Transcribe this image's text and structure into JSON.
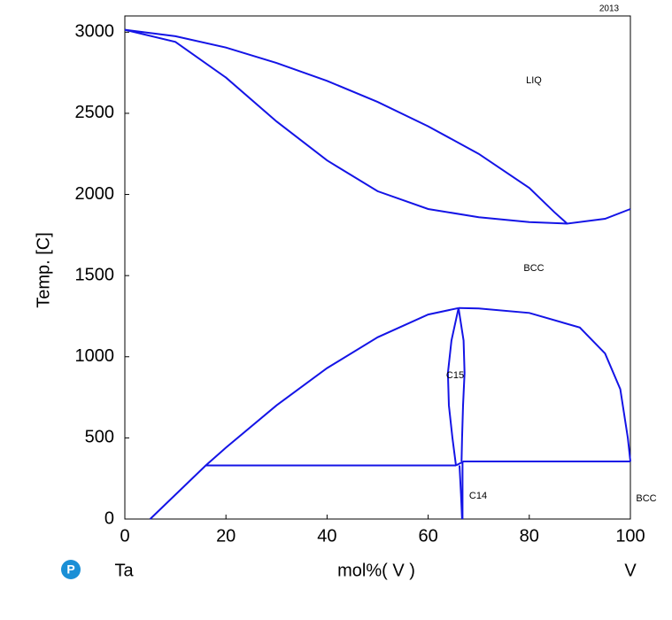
{
  "chart_data": {
    "type": "line",
    "stamp": "2013",
    "y_label": "Temp.  [C]",
    "x_label": "mol%(  V  )",
    "components": [
      "Ta",
      "V"
    ],
    "color": "#1414e6",
    "xlim": [
      0,
      100
    ],
    "xticks": [
      0,
      20,
      40,
      60,
      80,
      100
    ],
    "ylim": [
      0,
      3100
    ],
    "yticks": [
      0,
      500,
      1000,
      1500,
      2000,
      2500,
      3000
    ],
    "annotations": [
      "LIQ",
      "BCC",
      "C15",
      "C14",
      "BCC"
    ],
    "series": [
      {
        "x": [
          0,
          10,
          20,
          30,
          40,
          50,
          60,
          70,
          80,
          85,
          87.5,
          95,
          100
        ],
        "values": [
          3015,
          2975,
          2905,
          2810,
          2700,
          2570,
          2420,
          2250,
          2040,
          1890,
          1820,
          1850,
          1910
        ]
      },
      {
        "x": [
          0,
          10,
          20,
          30,
          40,
          50,
          60,
          70,
          80,
          87.5
        ],
        "values": [
          3015,
          2940,
          2720,
          2450,
          2210,
          2020,
          1910,
          1860,
          1830,
          1820
        ]
      },
      {
        "x": [
          5,
          16,
          20,
          30,
          40,
          50,
          60,
          66
        ],
        "values": [
          0,
          330,
          440,
          700,
          930,
          1120,
          1260,
          1300
        ]
      },
      {
        "x": [
          66,
          70,
          80,
          90,
          95,
          98,
          99.5,
          100
        ],
        "values": [
          1300,
          1298,
          1270,
          1180,
          1020,
          800,
          500,
          355
        ]
      },
      {
        "x": [
          16,
          65.5
        ],
        "values": [
          330,
          330
        ]
      },
      {
        "x": [
          65.5,
          67,
          100
        ],
        "values": [
          330,
          355,
          355
        ]
      },
      {
        "x": [
          66,
          64.6,
          63.9,
          64.1,
          64.8,
          65.5
        ],
        "values": [
          1300,
          1100,
          900,
          700,
          500,
          330
        ]
      },
      {
        "x": [
          66,
          67,
          67.2,
          66.9,
          66.7,
          66.6
        ],
        "values": [
          1300,
          1100,
          900,
          700,
          500,
          355
        ]
      },
      {
        "x": [
          66.2,
          66.5,
          66.7
        ],
        "values": [
          330,
          150,
          0
        ]
      },
      {
        "x": [
          66.8,
          66.8
        ],
        "values": [
          355,
          0
        ]
      }
    ]
  }
}
